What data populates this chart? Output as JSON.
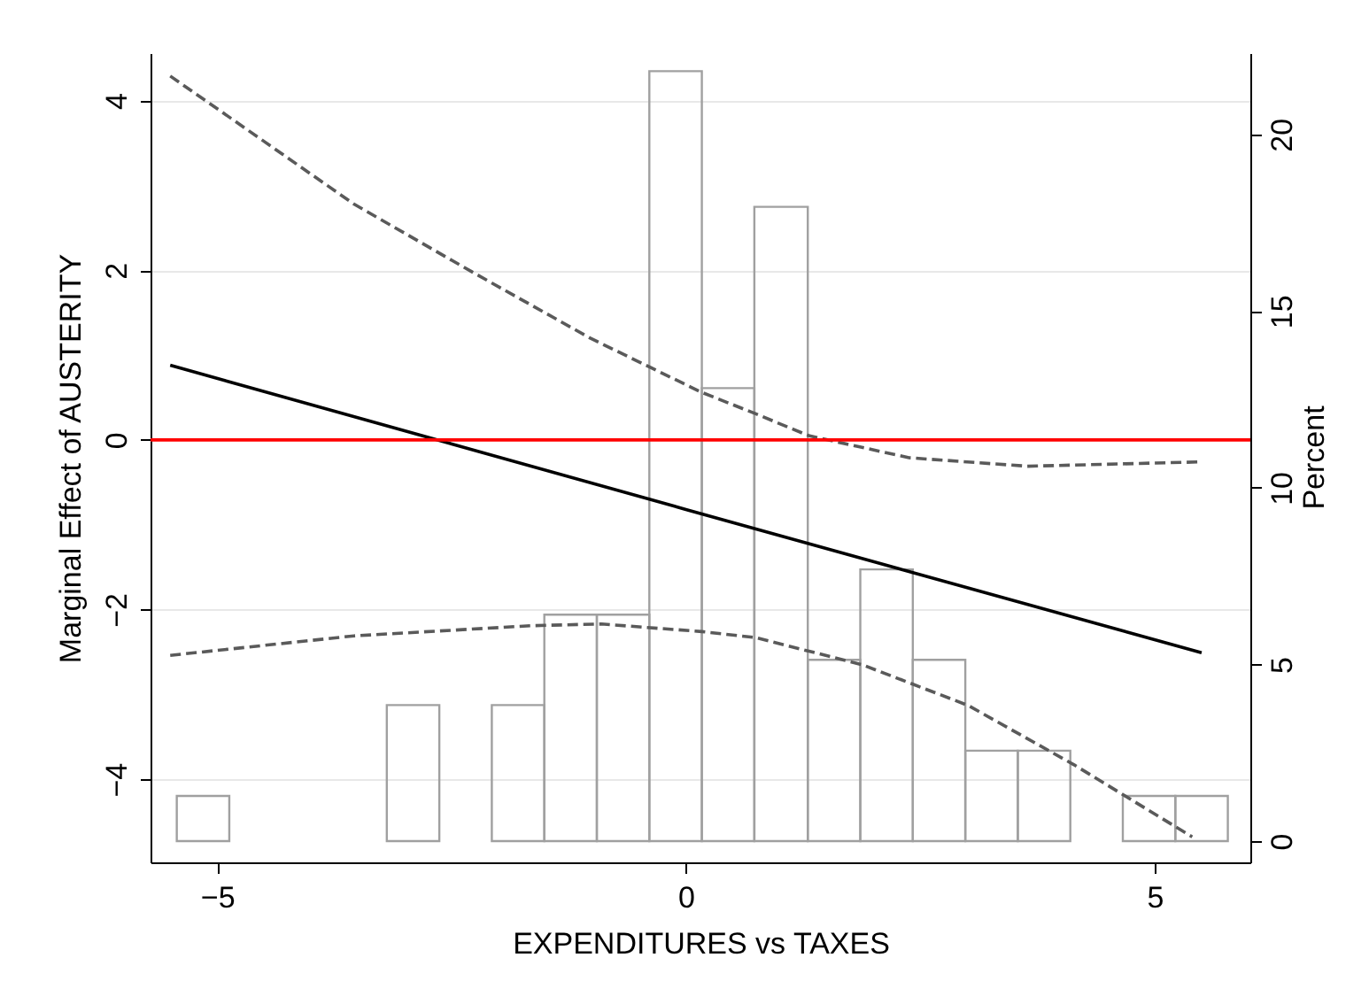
{
  "chart_data": {
    "type": "line",
    "xlabel": "EXPENDITURES vs TAXES",
    "ylabel": "Marginal Effect of AUSTERITY",
    "y2label": "Percent",
    "xlim": [
      -5.71,
      6.02
    ],
    "xticks": [
      -5,
      0,
      5
    ],
    "ylim": [
      -4.98,
      4.56
    ],
    "yticks": [
      -4,
      -2,
      0,
      2,
      4
    ],
    "y2lim": [
      -0.6,
      22.3
    ],
    "y2ticks": [
      0,
      5,
      10,
      15,
      20
    ],
    "grid": "y",
    "ref_lines": [
      {
        "axis": "y",
        "value": 0,
        "color": "#ff0000"
      }
    ],
    "series": [
      {
        "type": "histogram",
        "axis": "y2",
        "color": "#a0a0a0",
        "bins": [
          -5.43,
          -4.87,
          -3.19,
          -2.63,
          -2.07,
          -1.51,
          -0.95,
          -0.39,
          0.17,
          0.73,
          1.3,
          1.86,
          2.42,
          2.98,
          3.54,
          4.1,
          4.66,
          5.22,
          5.78
        ],
        "values": [
          1.28,
          0,
          3.85,
          0,
          3.85,
          6.41,
          6.41,
          21.79,
          12.82,
          17.95,
          5.13,
          7.69,
          5.13,
          2.56,
          2.56,
          0,
          1.28,
          1.28
        ]
      },
      {
        "color": "#000000",
        "line_style": "solid",
        "x": [
          -5.5,
          0,
          5.5
        ],
        "values": [
          0.88,
          -0.82,
          -2.51
        ]
      },
      {
        "color": "#5a5a5a",
        "line_style": "dashed",
        "x": [
          -5.5,
          -4.5,
          -3.54,
          -2.28,
          -1.02,
          0.17,
          0.74,
          1.31,
          2.38,
          3.64,
          5.46
        ],
        "values": [
          4.29,
          3.52,
          2.78,
          1.98,
          1.2,
          0.56,
          0.31,
          0.05,
          -0.21,
          -0.31,
          -0.26
        ]
      },
      {
        "color": "#5a5a5a",
        "line_style": "dashed",
        "x": [
          -5.5,
          -3.54,
          -1.65,
          -0.9,
          0.17,
          0.74,
          1.88,
          3.01,
          4.14,
          5.4
        ],
        "values": [
          -2.54,
          -2.31,
          -2.19,
          -2.17,
          -2.26,
          -2.33,
          -2.65,
          -3.13,
          -3.83,
          -4.68
        ]
      }
    ]
  }
}
